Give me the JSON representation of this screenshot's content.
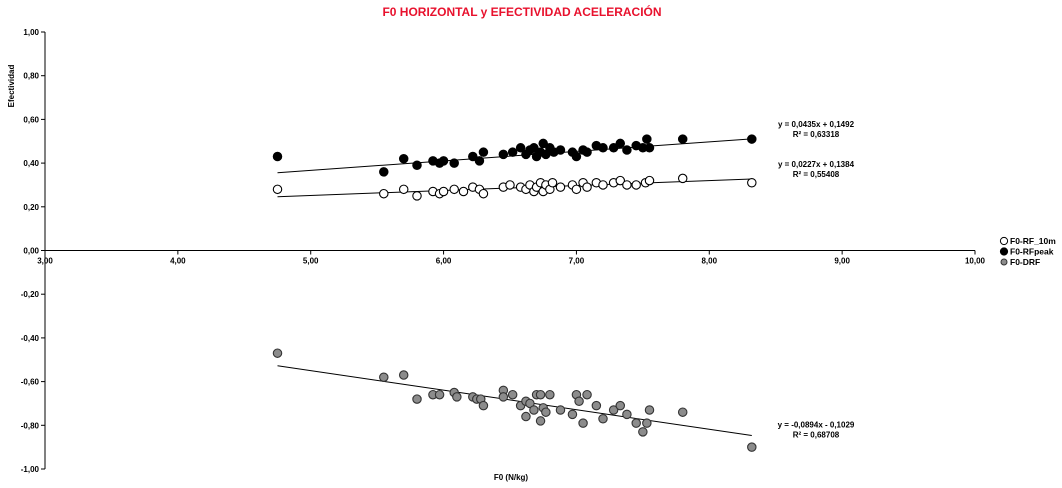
{
  "chart_data": {
    "type": "scatter",
    "title": "F0 HORIZONTAL y EFECTIVIDAD ACELERACIÓN",
    "title_color": "#e8112d",
    "xlabel": "F0 (N/kg)",
    "ylabel": "Efectividad",
    "xlim": [
      3,
      10
    ],
    "ylim": [
      -1,
      1
    ],
    "x_ticks": [
      "3,00",
      "4,00",
      "5,00",
      "6,00",
      "7,00",
      "8,00",
      "9,00",
      "10,00"
    ],
    "y_ticks": [
      "1,00",
      "0,80",
      "0,60",
      "0,40",
      "0,20",
      "0,00",
      "-0,20",
      "-0,40",
      "-0,60",
      "-0,80",
      "-1,00"
    ],
    "grid": false,
    "legend_position": "right",
    "series": [
      {
        "name": "F0-RF_10m",
        "marker": "hollow-circle",
        "color": "#000000",
        "fill": "#ffffff",
        "points": [
          [
            4.75,
            0.28
          ],
          [
            5.55,
            0.26
          ],
          [
            5.7,
            0.28
          ],
          [
            5.8,
            0.25
          ],
          [
            5.92,
            0.27
          ],
          [
            5.97,
            0.26
          ],
          [
            6.0,
            0.27
          ],
          [
            6.08,
            0.28
          ],
          [
            6.15,
            0.27
          ],
          [
            6.22,
            0.29
          ],
          [
            6.27,
            0.28
          ],
          [
            6.3,
            0.26
          ],
          [
            6.45,
            0.29
          ],
          [
            6.5,
            0.3
          ],
          [
            6.58,
            0.29
          ],
          [
            6.62,
            0.28
          ],
          [
            6.65,
            0.3
          ],
          [
            6.68,
            0.27
          ],
          [
            6.7,
            0.29
          ],
          [
            6.73,
            0.31
          ],
          [
            6.75,
            0.27
          ],
          [
            6.77,
            0.3
          ],
          [
            6.8,
            0.28
          ],
          [
            6.82,
            0.31
          ],
          [
            6.88,
            0.29
          ],
          [
            6.97,
            0.3
          ],
          [
            7.0,
            0.28
          ],
          [
            7.05,
            0.31
          ],
          [
            7.08,
            0.29
          ],
          [
            7.15,
            0.31
          ],
          [
            7.2,
            0.3
          ],
          [
            7.28,
            0.31
          ],
          [
            7.33,
            0.32
          ],
          [
            7.38,
            0.3
          ],
          [
            7.45,
            0.3
          ],
          [
            7.52,
            0.31
          ],
          [
            7.55,
            0.32
          ],
          [
            7.8,
            0.33
          ],
          [
            8.32,
            0.31
          ]
        ],
        "trendline": {
          "slope": 0.0227,
          "intercept": 0.1384,
          "x_range": [
            4.75,
            8.32
          ]
        },
        "equation": "y = 0,0227x + 0,1384",
        "r_squared": "R² = 0,55408"
      },
      {
        "name": "F0-RFpeak",
        "marker": "filled-circle",
        "color": "#000000",
        "fill": "#000000",
        "points": [
          [
            4.75,
            0.43
          ],
          [
            5.55,
            0.36
          ],
          [
            5.7,
            0.42
          ],
          [
            5.8,
            0.39
          ],
          [
            5.92,
            0.41
          ],
          [
            5.97,
            0.4
          ],
          [
            6.0,
            0.41
          ],
          [
            6.08,
            0.4
          ],
          [
            6.22,
            0.43
          ],
          [
            6.27,
            0.41
          ],
          [
            6.3,
            0.45
          ],
          [
            6.45,
            0.44
          ],
          [
            6.52,
            0.45
          ],
          [
            6.58,
            0.47
          ],
          [
            6.62,
            0.44
          ],
          [
            6.65,
            0.46
          ],
          [
            6.68,
            0.47
          ],
          [
            6.7,
            0.43
          ],
          [
            6.73,
            0.45
          ],
          [
            6.75,
            0.49
          ],
          [
            6.77,
            0.44
          ],
          [
            6.8,
            0.47
          ],
          [
            6.83,
            0.45
          ],
          [
            6.88,
            0.46
          ],
          [
            6.97,
            0.45
          ],
          [
            7.0,
            0.43
          ],
          [
            7.05,
            0.46
          ],
          [
            7.08,
            0.45
          ],
          [
            7.15,
            0.48
          ],
          [
            7.2,
            0.47
          ],
          [
            7.28,
            0.47
          ],
          [
            7.33,
            0.49
          ],
          [
            7.38,
            0.46
          ],
          [
            7.45,
            0.48
          ],
          [
            7.5,
            0.47
          ],
          [
            7.53,
            0.51
          ],
          [
            7.55,
            0.47
          ],
          [
            7.8,
            0.51
          ],
          [
            8.32,
            0.51
          ]
        ],
        "trendline": {
          "slope": 0.0435,
          "intercept": 0.1492,
          "x_range": [
            4.75,
            8.32
          ]
        },
        "equation": "y = 0,0435x + 0,1492",
        "r_squared": "R² = 0,63318"
      },
      {
        "name": "F0-DRF",
        "marker": "filled-circle",
        "color": "#333333",
        "fill": "#8c8c8c",
        "points": [
          [
            4.75,
            -0.47
          ],
          [
            5.55,
            -0.58
          ],
          [
            5.7,
            -0.57
          ],
          [
            5.8,
            -0.68
          ],
          [
            5.92,
            -0.66
          ],
          [
            5.97,
            -0.66
          ],
          [
            6.08,
            -0.65
          ],
          [
            6.1,
            -0.67
          ],
          [
            6.22,
            -0.67
          ],
          [
            6.25,
            -0.68
          ],
          [
            6.28,
            -0.68
          ],
          [
            6.3,
            -0.71
          ],
          [
            6.45,
            -0.64
          ],
          [
            6.45,
            -0.67
          ],
          [
            6.52,
            -0.66
          ],
          [
            6.58,
            -0.71
          ],
          [
            6.62,
            -0.69
          ],
          [
            6.62,
            -0.76
          ],
          [
            6.65,
            -0.7
          ],
          [
            6.68,
            -0.73
          ],
          [
            6.7,
            -0.66
          ],
          [
            6.73,
            -0.78
          ],
          [
            6.73,
            -0.66
          ],
          [
            6.75,
            -0.72
          ],
          [
            6.77,
            -0.74
          ],
          [
            6.8,
            -0.66
          ],
          [
            6.88,
            -0.73
          ],
          [
            6.97,
            -0.75
          ],
          [
            7.0,
            -0.66
          ],
          [
            7.02,
            -0.69
          ],
          [
            7.05,
            -0.79
          ],
          [
            7.08,
            -0.66
          ],
          [
            7.15,
            -0.71
          ],
          [
            7.2,
            -0.77
          ],
          [
            7.28,
            -0.73
          ],
          [
            7.33,
            -0.71
          ],
          [
            7.38,
            -0.75
          ],
          [
            7.45,
            -0.79
          ],
          [
            7.5,
            -0.83
          ],
          [
            7.53,
            -0.79
          ],
          [
            7.55,
            -0.73
          ],
          [
            7.8,
            -0.74
          ],
          [
            8.32,
            -0.9
          ]
        ],
        "trendline": {
          "slope": -0.0894,
          "intercept": -0.1029,
          "x_range": [
            4.75,
            8.32
          ]
        },
        "equation": "y = -0,0894x - 0,1029",
        "r_squared": "R² = 0,68708"
      }
    ]
  }
}
